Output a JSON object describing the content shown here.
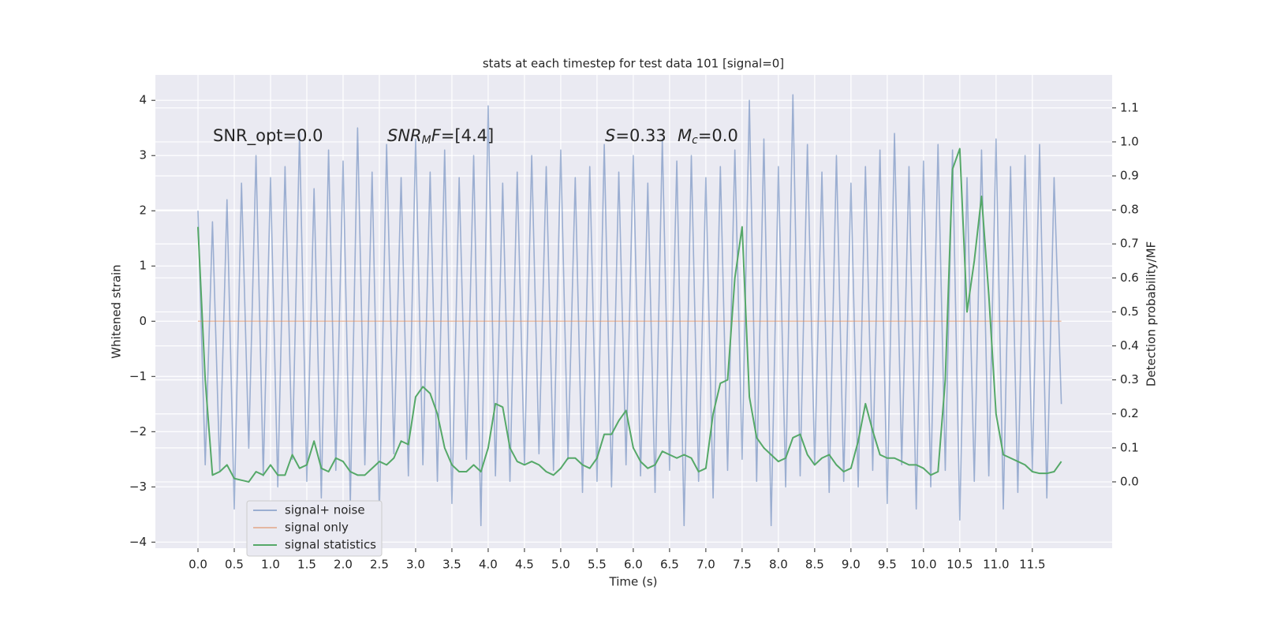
{
  "chart_data": {
    "type": "line",
    "title": "stats at each timestep for test data 101 [signal=0]",
    "xlabel": "Time (s)",
    "ylabel": "Whitened strain",
    "y2label": "Detection probability/MF",
    "annotations": [
      [
        {
          "text": "SNR_opt=0.0",
          "style": "normal"
        }
      ],
      [
        {
          "text": "SNR",
          "style": "italic"
        },
        {
          "text": "M",
          "style": "sub"
        },
        {
          "text": "F",
          "style": "italic"
        },
        {
          "text": "=[4.4]",
          "style": "normal"
        }
      ],
      [
        {
          "text": "S",
          "style": "italic"
        },
        {
          "text": "=0.33",
          "style": "normal"
        }
      ],
      [
        {
          "text": "M",
          "style": "italic"
        },
        {
          "text": "c",
          "style": "sub"
        },
        {
          "text": "=0.0",
          "style": "normal"
        }
      ]
    ],
    "x": [
      0,
      0.1,
      0.2,
      0.3,
      0.4,
      0.5,
      0.6,
      0.7,
      0.8,
      0.9,
      1,
      1.1,
      1.2,
      1.3,
      1.4,
      1.5,
      1.6,
      1.7,
      1.8,
      1.9,
      2,
      2.1,
      2.2,
      2.3,
      2.4,
      2.5,
      2.6,
      2.7,
      2.8,
      2.9,
      3,
      3.1,
      3.2,
      3.3,
      3.4,
      3.5,
      3.6,
      3.7,
      3.8,
      3.9,
      4,
      4.1,
      4.2,
      4.3,
      4.4,
      4.5,
      4.6,
      4.7,
      4.8,
      4.9,
      5,
      5.1,
      5.2,
      5.3,
      5.4,
      5.5,
      5.6,
      5.7,
      5.8,
      5.9,
      6,
      6.1,
      6.2,
      6.3,
      6.4,
      6.5,
      6.6,
      6.7,
      6.8,
      6.9,
      7,
      7.1,
      7.2,
      7.3,
      7.4,
      7.5,
      7.6,
      7.7,
      7.8,
      7.9,
      8,
      8.1,
      8.2,
      8.3,
      8.4,
      8.5,
      8.6,
      8.7,
      8.8,
      8.9,
      9,
      9.1,
      9.2,
      9.3,
      9.4,
      9.5,
      9.6,
      9.7,
      9.8,
      9.9,
      10,
      10.1,
      10.2,
      10.3,
      10.4,
      10.5,
      10.6,
      10.7,
      10.8,
      10.9,
      11,
      11.1,
      11.2,
      11.3,
      11.4,
      11.5,
      11.6,
      11.7,
      11.8,
      11.9
    ],
    "series": [
      {
        "name": "signal+ noise",
        "color": "#4c72b0",
        "opacity": 0.5,
        "values": [
          2.0,
          -2.6,
          1.8,
          -2.7,
          2.2,
          -3.4,
          2.5,
          -2.3,
          3.0,
          -2.8,
          2.6,
          -3.0,
          2.8,
          -2.5,
          3.4,
          -2.9,
          2.4,
          -3.2,
          3.1,
          -2.7,
          2.9,
          -3.3,
          3.5,
          -2.6,
          2.7,
          -3.5,
          3.2,
          -2.4,
          2.6,
          -2.8,
          3.3,
          -2.6,
          2.7,
          -2.9,
          3.1,
          -3.3,
          2.6,
          -2.5,
          3.0,
          -3.7,
          3.9,
          -2.8,
          2.5,
          -2.9,
          2.7,
          -2.6,
          3.0,
          -2.4,
          2.8,
          -2.7,
          3.1,
          -2.5,
          2.6,
          -3.1,
          2.8,
          -2.9,
          3.2,
          -3.0,
          2.7,
          -2.6,
          3.0,
          -2.8,
          2.5,
          -3.1,
          3.3,
          -2.7,
          2.9,
          -3.7,
          3.0,
          -2.9,
          2.6,
          -3.2,
          2.8,
          -2.7,
          3.1,
          -2.5,
          4.0,
          -2.9,
          3.3,
          -3.7,
          2.8,
          -3.0,
          4.1,
          -2.8,
          3.2,
          -2.6,
          2.7,
          -3.1,
          3.0,
          -2.9,
          2.5,
          -3.0,
          2.8,
          -2.7,
          3.1,
          -3.3,
          3.4,
          -2.6,
          2.8,
          -3.4,
          2.9,
          -3.0,
          3.2,
          -2.7,
          3.1,
          -3.6,
          2.6,
          -2.9,
          3.1,
          -2.8,
          3.3,
          -3.4,
          2.8,
          -3.1,
          3.0,
          -2.7,
          3.2,
          -3.2,
          2.6,
          -1.5
        ]
      },
      {
        "name": "signal only",
        "color": "#dd8452",
        "opacity": 0.5,
        "values": [
          0,
          0,
          0,
          0,
          0,
          0,
          0,
          0,
          0,
          0,
          0,
          0,
          0,
          0,
          0,
          0,
          0,
          0,
          0,
          0,
          0,
          0,
          0,
          0,
          0,
          0,
          0,
          0,
          0,
          0,
          0,
          0,
          0,
          0,
          0,
          0,
          0,
          0,
          0,
          0,
          0,
          0,
          0,
          0,
          0,
          0,
          0,
          0,
          0,
          0,
          0,
          0,
          0,
          0,
          0,
          0,
          0,
          0,
          0,
          0,
          0,
          0,
          0,
          0,
          0,
          0,
          0,
          0,
          0,
          0,
          0,
          0,
          0,
          0,
          0,
          0,
          0,
          0,
          0,
          0,
          0,
          0,
          0,
          0,
          0,
          0,
          0,
          0,
          0,
          0,
          0,
          0,
          0,
          0,
          0,
          0,
          0,
          0,
          0,
          0,
          0,
          0,
          0,
          0,
          0,
          0,
          0,
          0,
          0,
          0,
          0,
          0,
          0,
          0,
          0,
          0,
          0,
          0,
          0,
          0
        ]
      },
      {
        "name": "signal statistics",
        "color": "#55a868",
        "opacity": 1,
        "axis": "y2",
        "values": [
          0.75,
          0.3,
          0.02,
          0.03,
          0.05,
          0.01,
          0.005,
          0.0,
          0.03,
          0.02,
          0.05,
          0.02,
          0.02,
          0.08,
          0.04,
          0.05,
          0.12,
          0.04,
          0.03,
          0.07,
          0.06,
          0.03,
          0.02,
          0.02,
          0.04,
          0.06,
          0.05,
          0.07,
          0.12,
          0.11,
          0.25,
          0.28,
          0.26,
          0.2,
          0.1,
          0.05,
          0.03,
          0.03,
          0.05,
          0.03,
          0.1,
          0.23,
          0.22,
          0.1,
          0.06,
          0.05,
          0.06,
          0.05,
          0.03,
          0.02,
          0.04,
          0.07,
          0.07,
          0.05,
          0.04,
          0.07,
          0.14,
          0.14,
          0.18,
          0.21,
          0.1,
          0.06,
          0.04,
          0.05,
          0.09,
          0.08,
          0.07,
          0.08,
          0.07,
          0.03,
          0.04,
          0.2,
          0.29,
          0.3,
          0.6,
          0.75,
          0.25,
          0.13,
          0.1,
          0.08,
          0.06,
          0.07,
          0.13,
          0.14,
          0.08,
          0.05,
          0.07,
          0.08,
          0.05,
          0.03,
          0.04,
          0.12,
          0.23,
          0.15,
          0.08,
          0.07,
          0.07,
          0.06,
          0.05,
          0.05,
          0.04,
          0.02,
          0.03,
          0.3,
          0.92,
          0.98,
          0.5,
          0.65,
          0.84,
          0.55,
          0.2,
          0.08,
          0.07,
          0.06,
          0.05,
          0.03,
          0.025,
          0.025,
          0.03,
          0.06
        ]
      }
    ],
    "xlim": [
      -0.587,
      12.6
    ],
    "xticks": [
      {
        "value": 0,
        "label": "0.0"
      },
      0.5,
      {
        "value": 1,
        "label": "1.0"
      },
      1.5,
      {
        "value": 2,
        "label": "2.0"
      },
      2.5,
      {
        "value": 3,
        "label": "3.0"
      },
      3.5,
      {
        "value": 4,
        "label": "4.0"
      },
      4.5,
      {
        "value": 5,
        "label": "5.0"
      },
      5.5,
      {
        "value": 6,
        "label": "6.0"
      },
      6.5,
      {
        "value": 7,
        "label": "7.0"
      },
      7.5,
      {
        "value": 8,
        "label": "8.0"
      },
      8.5,
      {
        "value": 9,
        "label": "9.0"
      },
      9.5,
      {
        "value": 10,
        "label": "10.0"
      },
      10.5,
      {
        "value": 11,
        "label": "11.0"
      },
      11.5
    ],
    "ylim": [
      -4.11,
      4.46
    ],
    "yticks": [
      {
        "value": -4,
        "label": "−4"
      },
      {
        "value": -3,
        "label": "−3"
      },
      {
        "value": -2,
        "label": "−2"
      },
      {
        "value": -1,
        "label": "−1"
      },
      0,
      1,
      2,
      3,
      4
    ],
    "y2lim": [
      -0.195,
      1.197
    ],
    "y2ticks": [
      {
        "value": 0,
        "label": "0.0"
      },
      0.1,
      0.2,
      0.3,
      0.4,
      0.5,
      0.6,
      0.7,
      0.8,
      0.9,
      {
        "value": 1,
        "label": "1.0"
      },
      1.1
    ],
    "grid": true,
    "legend": "lower left"
  }
}
